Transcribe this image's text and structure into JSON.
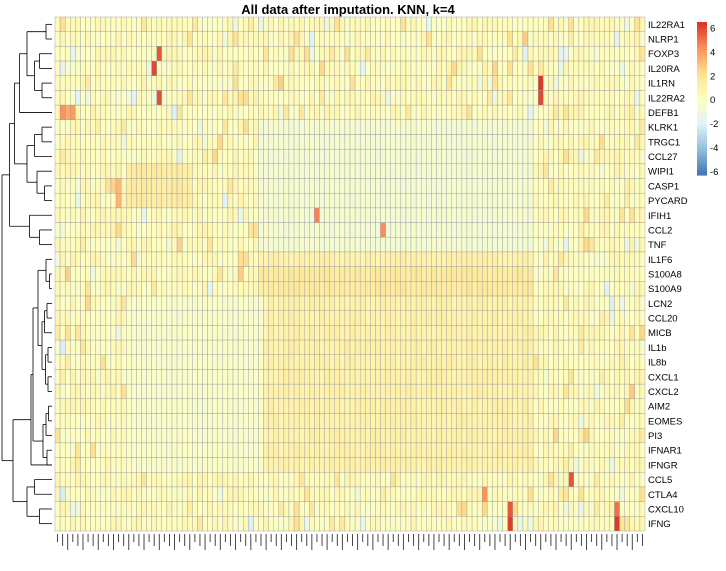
{
  "chart_data": {
    "type": "heatmap",
    "title": "All data after imputation. KNN, k=4",
    "rows": [
      "IL22RA1",
      "NLRP1",
      "FOXP3",
      "IL20RA",
      "IL1RN",
      "IL22RA2",
      "DEFB1",
      "KLRK1",
      "TRGC1",
      "CCL27",
      "WIPI1",
      "CASP1",
      "PYCARD",
      "IFIH1",
      "CCL2",
      "TNF",
      "IL1F6",
      "S100A8",
      "S100A9",
      "LCN2",
      "CCL20",
      "MICB",
      "IL1b",
      "IL8b",
      "CXCL1",
      "CXCL2",
      "AIM2",
      "EOMES",
      "PI3",
      "IFNAR1",
      "IFNGR",
      "CCL5",
      "CTLA4",
      "CXCL10",
      "IFNG"
    ],
    "n_columns": 116,
    "value_range": [
      -6.3,
      6.5
    ],
    "colorbar": {
      "ticks": [
        6,
        4,
        2,
        0,
        -2,
        -4,
        -6
      ],
      "colors": [
        "#4575b4",
        "#91bfdb",
        "#e0f3f8",
        "#ffffbf",
        "#fee090",
        "#fc8d59",
        "#d73027"
      ]
    },
    "row_dendrogram": true,
    "cluster_blocks": [
      {
        "rows": [
          16,
          30
        ],
        "cols": [
          40,
          93
        ],
        "value": 1.0
      },
      {
        "rows": [
          17,
          18
        ],
        "cols": [
          40,
          93
        ],
        "value": 1.5
      },
      {
        "rows": [
          7,
          15
        ],
        "cols": [
          40,
          93
        ],
        "value": -0.6
      },
      {
        "rows": [
          19,
          30
        ],
        "cols": [
          14,
          40
        ],
        "value": -0.3
      },
      {
        "rows": [
          10,
          12
        ],
        "cols": [
          14,
          26
        ],
        "value": 1.4
      }
    ],
    "highlights": [
      {
        "row": 6,
        "col": 1,
        "value": 4.8
      },
      {
        "row": 6,
        "col": 2,
        "value": 4.2
      },
      {
        "row": 6,
        "col": 3,
        "value": 3.6
      },
      {
        "row": 6,
        "col": 4,
        "value": 3.6
      },
      {
        "row": 6,
        "col": 6,
        "value": 4.0
      },
      {
        "row": 2,
        "col": 36,
        "value": 5.6
      },
      {
        "row": 3,
        "col": 35,
        "value": 6.0
      },
      {
        "row": 5,
        "col": 37,
        "value": 5.8
      },
      {
        "row": 11,
        "col": 21,
        "value": 3.2
      },
      {
        "row": 12,
        "col": 21,
        "value": 3.4
      },
      {
        "row": 13,
        "col": 93,
        "value": 4.6
      },
      {
        "row": 14,
        "col": 116,
        "value": 4.4
      },
      {
        "row": 4,
        "col": 172,
        "value": 6.3
      },
      {
        "row": 5,
        "col": 172,
        "value": 5.9
      },
      {
        "row": 31,
        "col": 183,
        "value": 5.7
      },
      {
        "row": 32,
        "col": 152,
        "value": 4.2
      },
      {
        "row": 33,
        "col": 161,
        "value": 5.6
      },
      {
        "row": 34,
        "col": 162,
        "value": 6.2
      },
      {
        "row": 34,
        "col": 200,
        "value": 6.3
      },
      {
        "row": 33,
        "col": 200,
        "value": 5.0
      },
      {
        "row": 25,
        "col": 205,
        "value": 2.8
      }
    ],
    "grid": true,
    "legend": "right"
  }
}
